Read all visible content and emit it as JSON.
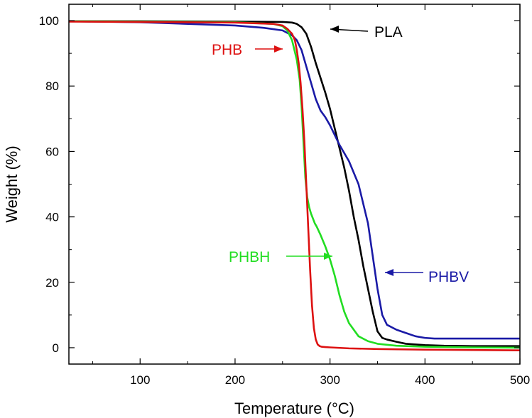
{
  "chart_data": {
    "type": "line",
    "title": "",
    "xlabel": "Temperature (°C)",
    "ylabel": "Weight (%)",
    "xlim": [
      25,
      500
    ],
    "ylim": [
      -5,
      105
    ],
    "xticks": [
      100,
      200,
      300,
      400,
      500
    ],
    "yticks": [
      0,
      20,
      40,
      60,
      80,
      100
    ],
    "grid": false,
    "legend": "none",
    "series": [
      {
        "name": "PLA",
        "color": "#000000",
        "x": [
          25,
          100,
          200,
          250,
          260,
          265,
          270,
          275,
          280,
          285,
          290,
          295,
          300,
          305,
          310,
          315,
          320,
          325,
          330,
          335,
          340,
          345,
          350,
          355,
          360,
          370,
          380,
          400,
          420,
          450,
          500
        ],
        "y": [
          99.8,
          99.8,
          99.7,
          99.6,
          99.4,
          99.0,
          98.0,
          96.0,
          92.0,
          87.0,
          82.5,
          78.0,
          73.0,
          67.0,
          61.0,
          55.0,
          48.0,
          40.0,
          33.0,
          25.0,
          18.0,
          11.0,
          5.0,
          3.0,
          2.5,
          1.8,
          1.2,
          0.8,
          0.6,
          0.5,
          0.5
        ]
      },
      {
        "name": "PHBV",
        "color": "#1a1aa6",
        "x": [
          25,
          100,
          200,
          230,
          250,
          260,
          265,
          270,
          275,
          280,
          285,
          290,
          295,
          300,
          310,
          320,
          330,
          340,
          345,
          350,
          355,
          360,
          370,
          380,
          390,
          400,
          410,
          450,
          500
        ],
        "y": [
          99.8,
          99.5,
          98.5,
          97.8,
          97.0,
          95.5,
          94.0,
          91.0,
          86.0,
          81.0,
          76.0,
          72.5,
          70.5,
          68.0,
          62.0,
          57.0,
          50.0,
          38.0,
          28.0,
          18.0,
          10.0,
          7.0,
          5.5,
          4.5,
          3.5,
          3.0,
          2.8,
          2.8,
          2.8
        ]
      },
      {
        "name": "PHBH",
        "color": "#22dd22",
        "x": [
          25,
          100,
          200,
          240,
          250,
          255,
          260,
          265,
          268,
          270,
          272,
          274,
          276,
          278,
          280,
          282,
          284,
          286,
          290,
          295,
          300,
          305,
          310,
          315,
          320,
          330,
          340,
          350,
          370,
          400,
          450,
          500
        ],
        "y": [
          99.8,
          99.7,
          99.5,
          99.0,
          98.3,
          97.0,
          94.0,
          88.0,
          82.0,
          74.0,
          63.0,
          52.0,
          46.0,
          43.0,
          41.0,
          39.5,
          38.0,
          37.0,
          34.5,
          31.0,
          27.0,
          22.0,
          16.0,
          11.0,
          7.5,
          3.5,
          2.0,
          1.2,
          0.6,
          0.3,
          0.1,
          0.0
        ]
      },
      {
        "name": "PHB",
        "color": "#dd1111",
        "x": [
          25,
          100,
          200,
          240,
          250,
          255,
          260,
          263,
          265,
          267,
          269,
          271,
          273,
          275,
          277,
          279,
          281,
          283,
          285,
          287,
          289,
          291,
          295,
          300,
          320,
          350,
          400,
          450,
          500
        ],
        "y": [
          99.7,
          99.6,
          99.4,
          99.0,
          98.5,
          97.5,
          96.0,
          94.0,
          91.0,
          87.0,
          81.0,
          73.0,
          63.0,
          50.0,
          37.0,
          24.0,
          13.0,
          6.0,
          2.5,
          1.0,
          0.5,
          0.3,
          0.2,
          0.1,
          -0.2,
          -0.4,
          -0.6,
          -0.7,
          -0.8
        ]
      }
    ],
    "annotations": [
      {
        "text": "PLA",
        "color": "#000000",
        "arrow_to": [
          266,
          97
        ]
      },
      {
        "text": "PHB",
        "color": "#dd1111",
        "arrow_to": [
          257,
          95
        ]
      },
      {
        "text": "PHBV",
        "color": "#1a1aa6",
        "arrow_to": [
          352,
          23
        ]
      },
      {
        "text": "PHBH",
        "color": "#22dd22",
        "arrow_to": [
          310,
          27
        ]
      }
    ]
  }
}
